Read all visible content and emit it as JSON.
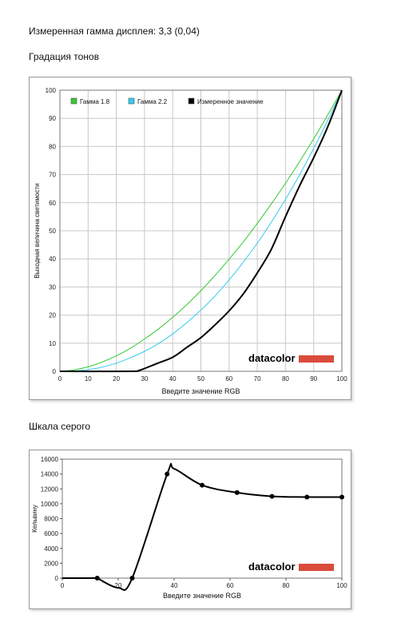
{
  "header": {
    "gamma_text": "Измеренная гамма дисплея: 3,3 (0,04)",
    "tone_title": "Градация тонов",
    "gray_title": "Шкала серого"
  },
  "brand": {
    "logo_text": "datacolor",
    "logo_bar_color": "#d94b3b"
  },
  "chart_data": [
    {
      "type": "line",
      "title": "",
      "xlabel": "Введите значение RGB",
      "ylabel": "Выходная величина светимости",
      "xlim": [
        0,
        100
      ],
      "ylim": [
        0,
        100
      ],
      "xticks": [
        "0",
        "10",
        "20",
        "30",
        "40",
        "50",
        "60",
        "70",
        "80",
        "90",
        "100"
      ],
      "yticks": [
        "0",
        "10",
        "20",
        "30",
        "40",
        "50",
        "60",
        "70",
        "80",
        "90",
        "100"
      ],
      "grid": true,
      "legend_position": "top-left",
      "series": [
        {
          "name": "Гамма 1.8",
          "color": "#34c934",
          "x": [
            0,
            5,
            10,
            15,
            20,
            25,
            30,
            35,
            40,
            45,
            50,
            55,
            60,
            65,
            70,
            75,
            80,
            85,
            90,
            95,
            100
          ],
          "y": [
            0,
            0.5,
            1.6,
            3.3,
            5.5,
            8.2,
            11.5,
            15.1,
            19.2,
            23.7,
            28.7,
            34.1,
            39.9,
            46.0,
            52.6,
            59.6,
            66.9,
            74.6,
            82.7,
            91.2,
            100
          ]
        },
        {
          "name": "Гамма 2.2",
          "color": "#33ccee",
          "x": [
            0,
            5,
            10,
            15,
            20,
            25,
            30,
            35,
            40,
            45,
            50,
            55,
            60,
            65,
            70,
            75,
            80,
            85,
            90,
            95,
            100
          ],
          "y": [
            0,
            0.1,
            0.6,
            1.5,
            2.9,
            4.8,
            7.1,
            9.9,
            13.3,
            17.3,
            21.8,
            26.8,
            32.5,
            38.8,
            45.6,
            53.1,
            61.2,
            69.9,
            79.3,
            89.3,
            100
          ]
        },
        {
          "name": "Измеренное значение",
          "color": "#000000",
          "x": [
            0,
            25,
            28,
            30,
            35,
            40,
            45,
            50,
            55,
            60,
            65,
            70,
            75,
            80,
            85,
            90,
            95,
            100
          ],
          "y": [
            0,
            0,
            0.3,
            1,
            3,
            5,
            8.5,
            12,
            16.5,
            21.5,
            27.5,
            35,
            43.5,
            55,
            66,
            76,
            87,
            100
          ]
        }
      ]
    },
    {
      "type": "line",
      "title": "",
      "xlabel": "Введите значение RGB",
      "ylabel": "Кельвину",
      "xlim": [
        0,
        100
      ],
      "ylim": [
        0,
        16000
      ],
      "xticks": [
        "0",
        "20",
        "40",
        "60",
        "80",
        "100"
      ],
      "yticks": [
        "0",
        "2000",
        "4000",
        "6000",
        "8000",
        "10000",
        "12000",
        "14000",
        "16000"
      ],
      "grid": false,
      "series": [
        {
          "name": "",
          "color": "#000000",
          "x": [
            12.5,
            20,
            25,
            37.5,
            40,
            50,
            62.5,
            75,
            87.5,
            100
          ],
          "y": [
            0,
            -1300,
            0,
            14000,
            14700,
            12500,
            11500,
            11000,
            10900,
            10900
          ],
          "markers_at": [
            12.5,
            25,
            37.5,
            50,
            62.5,
            75,
            87.5,
            100
          ]
        }
      ]
    }
  ]
}
